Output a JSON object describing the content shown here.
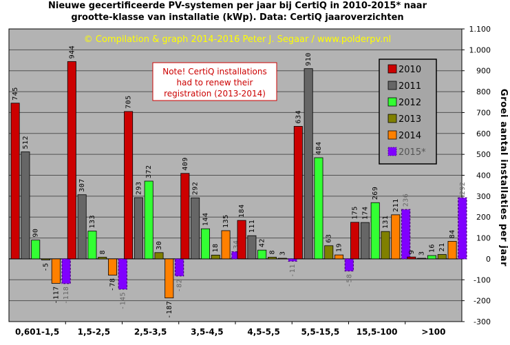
{
  "title": "Nieuwe gecertificeerde PV-systemen per jaar bij CertiQ in 2010-2015* naar\ngrootte-klasse van installatie (kWp). Data: CertiQ jaaroverzichten",
  "copyright": "© Compilation & graph 2014-2016 Peter J. Segaar / www.polderpv.nl",
  "note": [
    "Note! CertiQ installations",
    "had to renew their",
    "registration (2013-2014)"
  ],
  "chart_data": {
    "type": "bar",
    "categories": [
      "0,601-1,5",
      "1,5-2,5",
      "2,5-3,5",
      "3,5-4,5",
      "4,5-5,5",
      "5,5-15,5",
      "15,5-100",
      ">100"
    ],
    "series": [
      {
        "name": "2010",
        "color": "#cc0000",
        "values": [
          745,
          944,
          705,
          409,
          184,
          634,
          175,
          9
        ]
      },
      {
        "name": "2011",
        "color": "#666666",
        "values": [
          512,
          307,
          293,
          292,
          111,
          910,
          174,
          3
        ]
      },
      {
        "name": "2012",
        "color": "#33ff33",
        "values": [
          90,
          133,
          372,
          144,
          42,
          484,
          269,
          16
        ]
      },
      {
        "name": "2013",
        "color": "#808000",
        "values": [
          -5,
          8,
          30,
          18,
          8,
          63,
          131,
          21
        ]
      },
      {
        "name": "2014",
        "color": "#ff8000",
        "values": [
          -117,
          -78,
          -187,
          135,
          3,
          19,
          211,
          84
        ]
      },
      {
        "name": "2015*",
        "color": "#8000ff",
        "dashed": true,
        "values": [
          -118,
          -145,
          -82,
          34,
          -11,
          -58,
          236,
          292
        ]
      }
    ],
    "ylabel": "Groei aantal installaties per jaar",
    "ylim": [
      -300,
      1100
    ],
    "yticks": [
      -300,
      -200,
      -100,
      0,
      100,
      200,
      300,
      400,
      500,
      600,
      700,
      800,
      900,
      1000,
      1100
    ],
    "ytick_labels": [
      "-300",
      "-200",
      "-100",
      "0",
      "100",
      "200",
      "300",
      "400",
      "500",
      "600",
      "700",
      "800",
      "900",
      "1.000",
      "1.100"
    ],
    "grid": true,
    "legend_position": "top-right"
  }
}
